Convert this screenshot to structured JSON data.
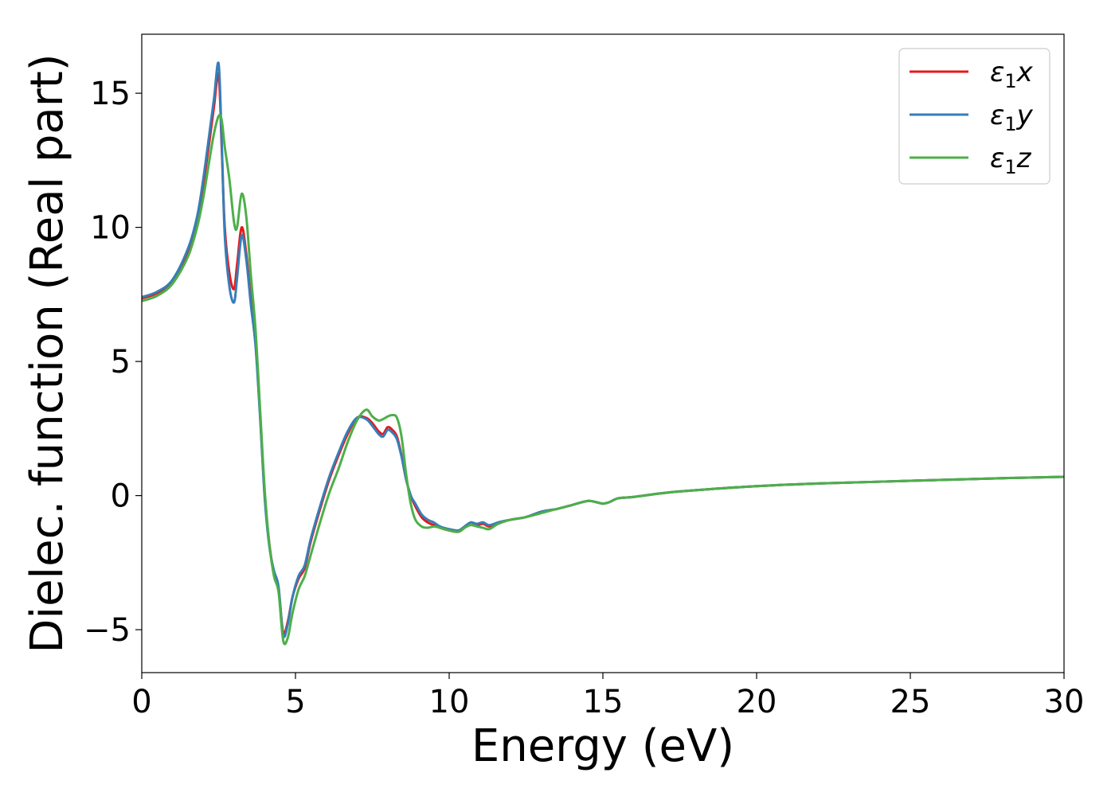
{
  "chart_data": {
    "type": "line",
    "xlabel": "Energy (eV)",
    "ylabel": "Dielec. function (Real part)",
    "xlim": [
      0,
      30
    ],
    "ylim": [
      -6.6,
      17.2
    ],
    "xticks": [
      0,
      5,
      10,
      15,
      20,
      25,
      30
    ],
    "yticks": [
      -5,
      0,
      5,
      10,
      15
    ],
    "grid": false,
    "legend_position": "top-right",
    "series": [
      {
        "name": "ε1x",
        "legend_base": "ε",
        "legend_sub": "1",
        "legend_var": "x",
        "color": "#e41a1c",
        "x": [
          0,
          0.5,
          1.0,
          1.5,
          1.8,
          2.0,
          2.2,
          2.35,
          2.5,
          2.6,
          2.7,
          2.85,
          3.0,
          3.1,
          3.25,
          3.4,
          3.55,
          3.7,
          3.85,
          4.0,
          4.15,
          4.3,
          4.45,
          4.6,
          4.75,
          4.9,
          5.1,
          5.3,
          5.5,
          5.8,
          6.1,
          6.4,
          6.7,
          7.0,
          7.3,
          7.5,
          7.7,
          7.85,
          8.0,
          8.15,
          8.3,
          8.45,
          8.6,
          8.75,
          8.9,
          9.1,
          9.3,
          9.5,
          9.7,
          10.0,
          10.3,
          10.5,
          10.7,
          10.9,
          11.1,
          11.3,
          11.6,
          12.0,
          12.5,
          13.0,
          13.5,
          14.0,
          14.5,
          14.8,
          15.0,
          15.2,
          15.5,
          16.0,
          17.0,
          18.0,
          20.0,
          22.0,
          25.0,
          28.0,
          30.0
        ],
        "y": [
          7.35,
          7.55,
          8.0,
          9.1,
          10.3,
          11.6,
          13.2,
          14.5,
          15.7,
          13.0,
          10.0,
          8.3,
          7.7,
          8.6,
          10.0,
          9.0,
          7.3,
          5.8,
          3.0,
          0.0,
          -1.8,
          -2.9,
          -3.5,
          -5.1,
          -4.7,
          -3.8,
          -3.1,
          -2.7,
          -1.7,
          -0.5,
          0.6,
          1.5,
          2.3,
          2.9,
          2.9,
          2.7,
          2.4,
          2.3,
          2.55,
          2.45,
          2.2,
          1.5,
          0.6,
          0.0,
          -0.4,
          -0.8,
          -1.0,
          -1.1,
          -1.2,
          -1.3,
          -1.35,
          -1.2,
          -1.0,
          -1.1,
          -1.05,
          -1.15,
          -1.0,
          -0.9,
          -0.8,
          -0.6,
          -0.5,
          -0.35,
          -0.2,
          -0.25,
          -0.3,
          -0.25,
          -0.1,
          -0.05,
          0.1,
          0.2,
          0.35,
          0.45,
          0.55,
          0.65,
          0.7
        ]
      },
      {
        "name": "ε1y",
        "legend_base": "ε",
        "legend_sub": "1",
        "legend_var": "y",
        "color": "#377eb8",
        "x": [
          0,
          0.5,
          1.0,
          1.5,
          1.8,
          2.0,
          2.2,
          2.35,
          2.5,
          2.6,
          2.7,
          2.85,
          3.0,
          3.1,
          3.25,
          3.4,
          3.55,
          3.7,
          3.85,
          4.0,
          4.15,
          4.3,
          4.45,
          4.6,
          4.75,
          4.9,
          5.1,
          5.3,
          5.5,
          5.8,
          6.1,
          6.4,
          6.7,
          7.0,
          7.3,
          7.5,
          7.7,
          7.85,
          8.0,
          8.15,
          8.3,
          8.45,
          8.6,
          8.75,
          8.9,
          9.1,
          9.3,
          9.5,
          9.7,
          10.0,
          10.3,
          10.5,
          10.7,
          10.9,
          11.1,
          11.3,
          11.6,
          12.0,
          12.5,
          13.0,
          13.5,
          14.0,
          14.5,
          14.8,
          15.0,
          15.2,
          15.5,
          16.0,
          17.0,
          18.0,
          20.0,
          22.0,
          25.0,
          28.0,
          30.0
        ],
        "y": [
          7.4,
          7.6,
          8.05,
          9.2,
          10.4,
          11.8,
          13.5,
          14.8,
          16.1,
          13.2,
          9.7,
          7.8,
          7.2,
          8.1,
          9.7,
          8.8,
          7.1,
          5.6,
          2.9,
          -0.1,
          -1.9,
          -2.8,
          -3.4,
          -5.2,
          -4.8,
          -3.8,
          -3.0,
          -2.6,
          -1.6,
          -0.4,
          0.7,
          1.6,
          2.4,
          2.9,
          2.85,
          2.6,
          2.3,
          2.2,
          2.45,
          2.35,
          2.1,
          1.45,
          0.6,
          0.0,
          -0.3,
          -0.7,
          -0.9,
          -1.0,
          -1.15,
          -1.25,
          -1.3,
          -1.15,
          -1.0,
          -1.05,
          -1.0,
          -1.1,
          -1.0,
          -0.9,
          -0.8,
          -0.6,
          -0.5,
          -0.35,
          -0.2,
          -0.25,
          -0.3,
          -0.25,
          -0.1,
          -0.05,
          0.1,
          0.2,
          0.35,
          0.45,
          0.55,
          0.65,
          0.7
        ]
      },
      {
        "name": "ε1z",
        "legend_base": "ε",
        "legend_sub": "1",
        "legend_var": "z",
        "color": "#4daf4a",
        "x": [
          0,
          0.5,
          1.0,
          1.5,
          1.8,
          2.0,
          2.2,
          2.35,
          2.5,
          2.6,
          2.7,
          2.85,
          3.0,
          3.1,
          3.25,
          3.4,
          3.55,
          3.7,
          3.85,
          4.0,
          4.15,
          4.3,
          4.45,
          4.6,
          4.75,
          4.9,
          5.1,
          5.3,
          5.5,
          5.8,
          6.1,
          6.4,
          6.7,
          7.0,
          7.3,
          7.5,
          7.7,
          7.85,
          8.0,
          8.15,
          8.3,
          8.45,
          8.6,
          8.75,
          8.9,
          9.1,
          9.3,
          9.5,
          9.7,
          10.0,
          10.3,
          10.5,
          10.7,
          10.9,
          11.1,
          11.3,
          11.6,
          12.0,
          12.5,
          13.0,
          13.5,
          14.0,
          14.5,
          14.8,
          15.0,
          15.2,
          15.5,
          16.0,
          17.0,
          18.0,
          20.0,
          22.0,
          25.0,
          28.0,
          30.0
        ],
        "y": [
          7.25,
          7.45,
          7.9,
          8.9,
          10.0,
          11.1,
          12.5,
          13.5,
          14.15,
          14.0,
          13.0,
          11.8,
          10.2,
          10.0,
          11.25,
          10.4,
          8.2,
          6.2,
          3.2,
          0.2,
          -1.8,
          -3.0,
          -3.6,
          -5.4,
          -5.3,
          -4.4,
          -3.5,
          -3.0,
          -2.2,
          -1.0,
          0.1,
          1.0,
          2.0,
          2.8,
          3.2,
          2.95,
          2.8,
          2.85,
          2.95,
          3.0,
          2.9,
          2.2,
          0.8,
          -0.3,
          -0.9,
          -1.15,
          -1.2,
          -1.15,
          -1.2,
          -1.3,
          -1.35,
          -1.2,
          -1.1,
          -1.15,
          -1.2,
          -1.25,
          -1.05,
          -0.9,
          -0.8,
          -0.65,
          -0.5,
          -0.35,
          -0.2,
          -0.25,
          -0.3,
          -0.25,
          -0.1,
          -0.05,
          0.1,
          0.2,
          0.35,
          0.45,
          0.55,
          0.65,
          0.7
        ]
      }
    ]
  }
}
